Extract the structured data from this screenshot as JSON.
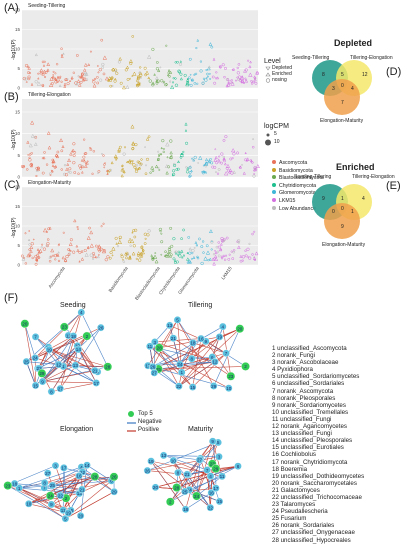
{
  "panels": {
    "A": {
      "letter": "(A)",
      "title": "Seeding-Tillering",
      "ylab": "-log10(P)",
      "yticks": [
        "0",
        "5",
        "10",
        "15",
        "20"
      ]
    },
    "B": {
      "letter": "(B)",
      "title": "Tillering-Elongation",
      "ylab": "-log10(P)",
      "yticks": [
        "0",
        "5",
        "10",
        "15"
      ]
    },
    "C": {
      "letter": "(C)",
      "title": "Elongation-Maturity",
      "ylab": "-log10(P)",
      "yticks": [
        "0",
        "5",
        "10",
        "15",
        "20"
      ]
    }
  },
  "xcats": [
    "Ascomycota",
    "Basidiomycota",
    "Blastocladiomycota",
    "Chytridiomycota",
    "Glomeromycota",
    "LKM15"
  ],
  "legend_level": {
    "title": "Level",
    "items": [
      "Depleted",
      "Enriched",
      "nosing"
    ]
  },
  "legend_cpm": {
    "title": "logCPM",
    "items": [
      "5",
      "10"
    ]
  },
  "legend_phylum": {
    "items": [
      {
        "label": "Ascomycota",
        "color": "#e8735a"
      },
      {
        "label": "Basidiomycota",
        "color": "#c9a227"
      },
      {
        "label": "Blastocladiomycota",
        "color": "#6aa84f"
      },
      {
        "label": "Chytridiomycota",
        "color": "#1fbf8f"
      },
      {
        "label": "Glomeromycota",
        "color": "#3fb6d8"
      },
      {
        "label": "LKM15",
        "color": "#d46fe0"
      },
      {
        "label": "Low Abundance",
        "color": "#bbbbbb"
      }
    ]
  },
  "venn_depleted": {
    "letter": "(D)",
    "title": "Depleted",
    "labels": [
      "Seeding-Tillering",
      "Tillering-Elongation",
      "Elongation-Maturity"
    ],
    "numbers": [
      "8",
      "12",
      "7",
      "5",
      "3",
      "0",
      "4"
    ]
  },
  "venn_enriched": {
    "letter": "(E)",
    "title": "Enriched",
    "labels": [
      "Seeding-Tillering",
      "Tillering-Elongation",
      "Elongation-Maturity"
    ],
    "numbers": [
      "9",
      "4",
      "9",
      "1",
      "0",
      "0",
      "1"
    ]
  },
  "network": {
    "letter": "(F)",
    "titles": [
      "Seeding",
      "Tillering",
      "Elongation",
      "Maturity"
    ],
    "legend": [
      "Top 5",
      "Negative",
      "Positive"
    ],
    "colors": {
      "top5": "#33cc55",
      "node": "#5bc0de",
      "neg": "#3a78c2",
      "pos": "#c0392b"
    }
  },
  "otu_list": [
    "1 unclassified_Ascomycota",
    "2 norank_Fungi",
    "3 norank_Ascobolaceae",
    "4 Pyxidiophora",
    "5 unclassified_Sordariomycetes",
    "6 unclassified_Sordariales",
    "7 norank_Ascomycota",
    "8 norank_Pleosporales",
    "9 norank_Sordariomycetes",
    "10 unclassified_Tremellales",
    "11 unclassified_Fungi",
    "12 norank_Agaricomycetes",
    "13 unclassified_Fungi",
    "14 unclassified_Pleosporales",
    "15 unclassified_Eurotiales",
    "16 Cochliobolus",
    "17 norank_Chytridiomycota",
    "18 Boeremia",
    "19 unclassified_Dothideomycetes",
    "20 norank_Saccharomycetales",
    "21 Galactomyces",
    "22 unclassified_Trichocomaceae",
    "23 Talaromyces",
    "24 Pseudallescheria",
    "25 Fusarium",
    "26 norank_Sordariales",
    "27 unclassified_Onygenaceae",
    "28 unclassified_Hypocreales"
  ]
}
